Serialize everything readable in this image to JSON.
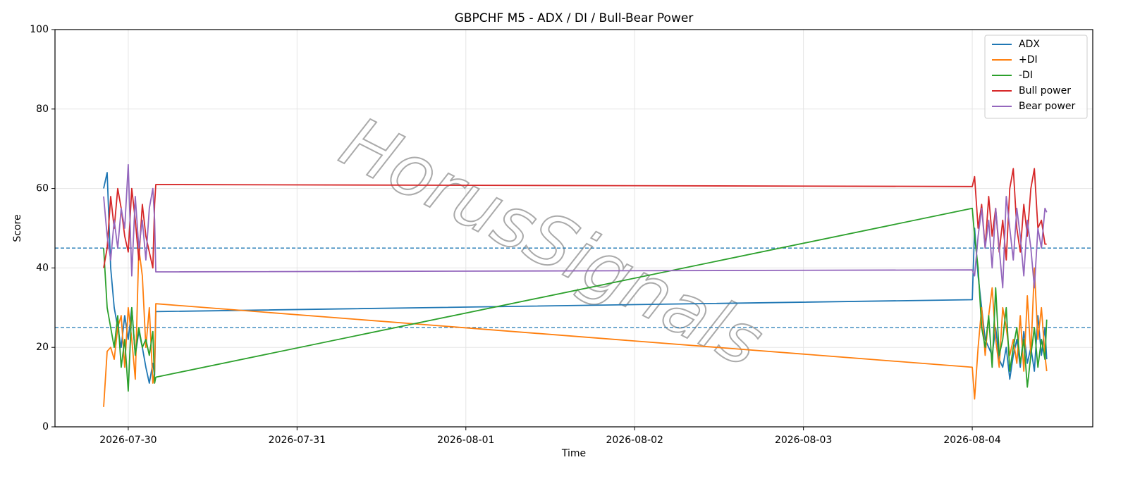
{
  "chart_data": {
    "type": "line",
    "title": "GBPCHF M5 - ADX / DI / Bull-Bear Power",
    "xlabel": "Time",
    "ylabel": "Score",
    "watermark": "HorusSignals",
    "x": [
      "2026-07-29 20:30",
      "2026-07-29 21:00",
      "2026-07-29 21:30",
      "2026-07-29 22:00",
      "2026-07-29 22:30",
      "2026-07-29 23:00",
      "2026-07-29 23:30",
      "2026-07-30 00:00",
      "2026-07-30 00:30",
      "2026-07-30 01:00",
      "2026-07-30 01:30",
      "2026-07-30 02:00",
      "2026-07-30 02:30",
      "2026-07-30 03:00",
      "2026-07-30 03:30",
      "2026-07-30 03:45",
      "2026-07-30 03:55",
      "2026-08-04 00:00",
      "2026-08-04 00:20",
      "2026-08-04 00:50",
      "2026-08-04 01:20",
      "2026-08-04 01:50",
      "2026-08-04 02:20",
      "2026-08-04 02:50",
      "2026-08-04 03:20",
      "2026-08-04 03:50",
      "2026-08-04 04:20",
      "2026-08-04 04:50",
      "2026-08-04 05:20",
      "2026-08-04 05:50",
      "2026-08-04 06:20",
      "2026-08-04 06:50",
      "2026-08-04 07:20",
      "2026-08-04 07:50",
      "2026-08-04 08:20",
      "2026-08-04 08:50",
      "2026-08-04 09:20",
      "2026-08-04 09:50",
      "2026-08-04 10:20",
      "2026-08-04 10:35"
    ],
    "series": [
      {
        "name": "ADX",
        "color": "#1f77b4",
        "values": [
          60,
          64,
          40,
          30,
          25,
          20,
          28,
          22,
          30,
          18,
          24,
          20,
          15,
          11,
          16,
          13,
          29,
          32,
          50,
          38,
          30,
          22,
          20,
          18,
          25,
          17,
          15,
          20,
          12,
          18,
          22,
          15,
          24,
          16,
          20,
          14,
          28,
          18,
          25,
          17
        ]
      },
      {
        "name": "+DI",
        "color": "#ff7f0e",
        "values": [
          5,
          19,
          20,
          17,
          25,
          28,
          15,
          30,
          22,
          12,
          45,
          38,
          20,
          30,
          11,
          14,
          31,
          15,
          7,
          20,
          30,
          18,
          28,
          35,
          22,
          15,
          30,
          25,
          18,
          22,
          16,
          28,
          14,
          33,
          18,
          40,
          22,
          30,
          18,
          14
        ]
      },
      {
        "name": "-DI",
        "color": "#2ca02c",
        "values": [
          45,
          30,
          25,
          20,
          28,
          15,
          22,
          9,
          30,
          18,
          25,
          20,
          22,
          18,
          24,
          11,
          12.5,
          55,
          48,
          40,
          25,
          20,
          28,
          15,
          35,
          18,
          22,
          30,
          14,
          20,
          25,
          16,
          22,
          10,
          18,
          25,
          15,
          22,
          17,
          27
        ]
      },
      {
        "name": "Bull power",
        "color": "#d62728",
        "values": [
          40,
          45,
          58,
          50,
          60,
          55,
          48,
          44,
          60,
          52,
          42,
          56,
          48,
          44,
          40,
          56,
          61,
          60.5,
          63,
          50,
          56,
          45,
          58,
          48,
          55,
          44,
          52,
          42,
          60,
          65,
          50,
          44,
          56,
          48,
          60,
          65,
          50,
          52,
          46,
          46
        ]
      },
      {
        "name": "Bear power",
        "color": "#9467bd",
        "values": [
          58,
          48,
          42,
          52,
          45,
          55,
          50,
          66,
          38,
          58,
          45,
          52,
          42,
          55,
          60,
          52,
          39,
          39.5,
          38,
          48,
          55,
          45,
          52,
          40,
          55,
          45,
          35,
          58,
          50,
          42,
          55,
          48,
          38,
          52,
          45,
          35,
          50,
          45,
          55,
          54
        ]
      }
    ],
    "hlines": [
      25,
      45
    ],
    "hline_color": "#1f77b4",
    "xlim": [
      "2026-07-29 13:35",
      "2026-08-04 17:08"
    ],
    "xticks": [
      "2026-07-30",
      "2026-07-31",
      "2026-08-01",
      "2026-08-02",
      "2026-08-03",
      "2026-08-04"
    ],
    "ylim": [
      0,
      100
    ],
    "yticks": [
      0,
      20,
      40,
      60,
      80,
      100
    ],
    "grid": true,
    "legend": "upper right"
  }
}
